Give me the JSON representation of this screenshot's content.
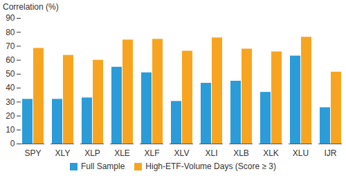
{
  "chart_data": {
    "type": "bar",
    "y_label": "Correlation (%)",
    "categories": [
      "SPY",
      "XLY",
      "XLP",
      "XLE",
      "XLF",
      "XLV",
      "XLI",
      "XLB",
      "XLK",
      "XLU",
      "IJR"
    ],
    "series": [
      {
        "name": "Full Sample",
        "color": "#2b9cd8",
        "values": [
          32,
          32,
          33,
          55,
          51,
          30.5,
          43.5,
          45,
          37,
          63,
          26
        ]
      },
      {
        "name": "High-ETF-Volume Days (Score ≥ 3)",
        "color": "#f7a521",
        "values": [
          68.5,
          63.5,
          60,
          74.5,
          75,
          66.5,
          76,
          68,
          66,
          76.5,
          51.5
        ]
      }
    ],
    "ylim": [
      0,
      90
    ],
    "yticks": [
      0,
      10,
      20,
      30,
      40,
      50,
      60,
      70,
      80,
      90
    ],
    "grid": false,
    "legend": "bottom"
  }
}
